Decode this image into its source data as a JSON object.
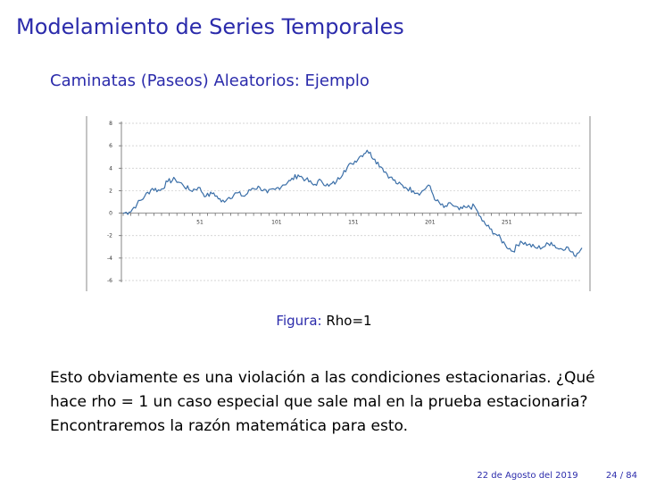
{
  "slide": {
    "title": "Modelamiento de Series Temporales",
    "subtitle": "Caminatas (Paseos) Aleatorios: Ejemplo",
    "caption_label": "Figura:",
    "caption_text": "Rho=1",
    "paragraph_lines": [
      "Esto obviamente es una violación a las condiciones estacionarias. ¿Qué",
      "hace rho = 1 un caso especial que sale mal en la prueba estacionaria?",
      "Encontraremos la razón matemática para esto."
    ],
    "footer_date": "22 de Agosto del 2019",
    "footer_page": "24 / 84"
  },
  "chart_data": {
    "type": "line",
    "title": "",
    "xlabel": "",
    "ylabel": "",
    "x_ticks": [
      51,
      101,
      151,
      201,
      251
    ],
    "y_ticks": [
      8,
      6,
      4,
      2,
      0,
      -2,
      -4,
      -6
    ],
    "y_tick_labels": [
      "8",
      "6",
      "4",
      "2",
      "0",
      "-2",
      "-4",
      "-6"
    ],
    "xlim": [
      1,
      300
    ],
    "ylim": [
      -6,
      8
    ],
    "grid": true,
    "line_color": "#3b6fa8",
    "series": [
      {
        "x": [
          1,
          5,
          10,
          15,
          20,
          25,
          30,
          35,
          40,
          45,
          50,
          55,
          60,
          65,
          70,
          75,
          80,
          85,
          90,
          95,
          100,
          105,
          110,
          115,
          120,
          125,
          130,
          135,
          140,
          145,
          150,
          155,
          160,
          165,
          170,
          175,
          180,
          185,
          190,
          195,
          200,
          205,
          210,
          215,
          220,
          225,
          230,
          235,
          240,
          245,
          250,
          255,
          260,
          265,
          270,
          275,
          280,
          285,
          290,
          295,
          300
        ],
        "y": [
          0,
          0.1,
          0.8,
          1.5,
          2.2,
          2.0,
          2.8,
          3.0,
          2.5,
          2.0,
          2.3,
          1.5,
          1.8,
          1.0,
          1.4,
          1.8,
          1.5,
          2.2,
          2.3,
          1.8,
          2.1,
          2.5,
          2.9,
          3.4,
          3.0,
          2.5,
          2.9,
          2.4,
          2.8,
          3.8,
          4.4,
          5.0,
          5.6,
          4.8,
          4.0,
          3.2,
          2.6,
          2.3,
          2.0,
          1.8,
          2.5,
          1.1,
          0.5,
          0.8,
          0.3,
          0.5,
          0.6,
          -0.7,
          -1.4,
          -2.0,
          -2.8,
          -3.4,
          -2.5,
          -2.8,
          -3.1,
          -3.0,
          -2.6,
          -3.2,
          -3.0,
          -3.8,
          -3.1
        ]
      }
    ]
  }
}
